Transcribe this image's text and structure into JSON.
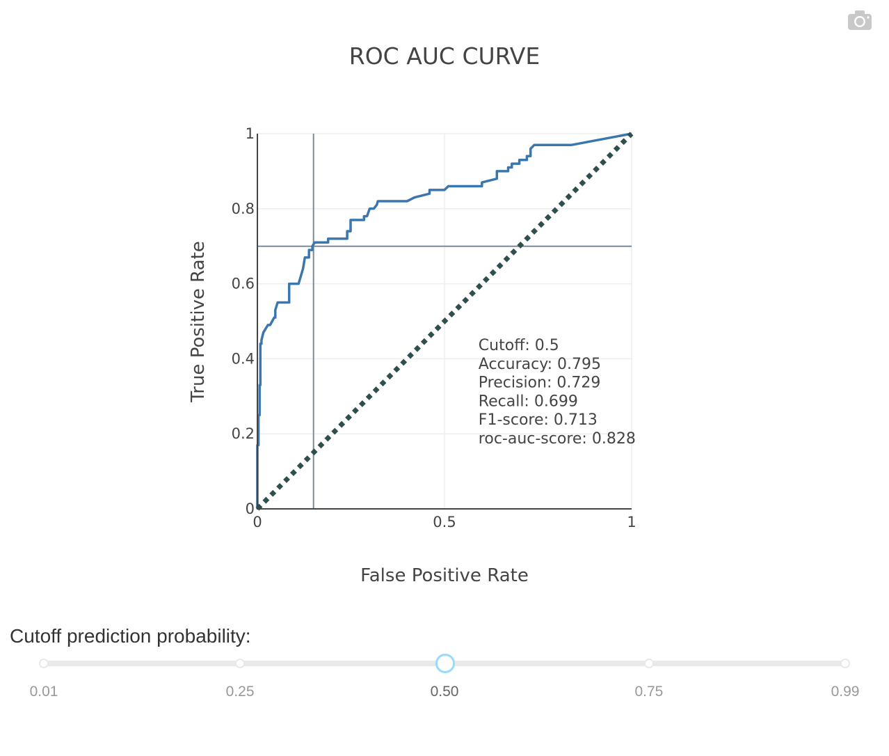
{
  "chart_data": {
    "type": "line",
    "title": "ROC AUC CURVE",
    "xlabel": "False Positive Rate",
    "ylabel": "True Positive Rate",
    "xlim": [
      0,
      1
    ],
    "ylim": [
      0,
      1
    ],
    "x_ticks": [
      "0",
      "0.5",
      "1"
    ],
    "y_ticks": [
      "0",
      "0.2",
      "0.4",
      "0.6",
      "0.8",
      "1"
    ],
    "grid": true,
    "legend": "none",
    "series": [
      {
        "color": "#3a77af",
        "line_style": "solid",
        "x": [
          0,
          0,
          0.003,
          0.003,
          0.006,
          0.006,
          0.008,
          0.008,
          0.011,
          0.011,
          0.016,
          0.022,
          0.028,
          0.034,
          0.045,
          0.048,
          0.048,
          0.054,
          0.065,
          0.082,
          0.085,
          0.085,
          0.11,
          0.113,
          0.113,
          0.122,
          0.127,
          0.136,
          0.138,
          0.138,
          0.142,
          0.147,
          0.147,
          0.153,
          0.161,
          0.189,
          0.189,
          0.24,
          0.24,
          0.249,
          0.249,
          0.263,
          0.282,
          0.285,
          0.285,
          0.293,
          0.3,
          0.311,
          0.311,
          0.319,
          0.322,
          0.33,
          0.33,
          0.4,
          0.42,
          0.46,
          0.46,
          0.5,
          0.51,
          0.51,
          0.6,
          0.6,
          0.64,
          0.64,
          0.67,
          0.67,
          0.68,
          0.68,
          0.7,
          0.7,
          0.72,
          0.72,
          0.73,
          0.73,
          0.74,
          0.84,
          1
        ],
        "y": [
          0,
          0.17,
          0.17,
          0.25,
          0.25,
          0.33,
          0.33,
          0.44,
          0.44,
          0.45,
          0.47,
          0.48,
          0.49,
          0.49,
          0.51,
          0.51,
          0.53,
          0.55,
          0.55,
          0.55,
          0.55,
          0.6,
          0.6,
          0.61,
          0.61,
          0.64,
          0.67,
          0.67,
          0.67,
          0.69,
          0.69,
          0.69,
          0.7,
          0.71,
          0.71,
          0.71,
          0.72,
          0.72,
          0.74,
          0.74,
          0.77,
          0.77,
          0.77,
          0.77,
          0.78,
          0.78,
          0.8,
          0.8,
          0.8,
          0.81,
          0.82,
          0.82,
          0.82,
          0.82,
          0.83,
          0.84,
          0.85,
          0.85,
          0.86,
          0.86,
          0.86,
          0.87,
          0.88,
          0.9,
          0.9,
          0.91,
          0.91,
          0.92,
          0.92,
          0.93,
          0.93,
          0.94,
          0.94,
          0.96,
          0.97,
          0.97,
          1
        ]
      },
      {
        "color": "#2f4f4f",
        "line_style": "dotted",
        "x": [
          0,
          1
        ],
        "y": [
          0,
          1
        ]
      }
    ],
    "cutoff_lines": {
      "color": "#7a8a99",
      "x": 0.15,
      "y": 0.7
    },
    "annotation_lines": [
      "Cutoff: 0.5",
      "Accuracy: 0.795",
      "Precision: 0.729",
      "Recall: 0.699",
      "F1-score: 0.713",
      "roc-auc-score: 0.828"
    ],
    "annotation_anchor": {
      "x": 0.6,
      "y": 0.41
    }
  },
  "toolbar": {
    "camera_icon": "camera-icon"
  },
  "slider": {
    "label": "Cutoff prediction probability:",
    "min": 0.01,
    "max": 0.99,
    "value": 0.5,
    "accent_color": "#96dbfa",
    "marks": [
      {
        "value": 0.01,
        "label": "0.01"
      },
      {
        "value": 0.25,
        "label": "0.25"
      },
      {
        "value": 0.5,
        "label": "0.50"
      },
      {
        "value": 0.75,
        "label": "0.75"
      },
      {
        "value": 0.99,
        "label": "0.99"
      }
    ]
  }
}
